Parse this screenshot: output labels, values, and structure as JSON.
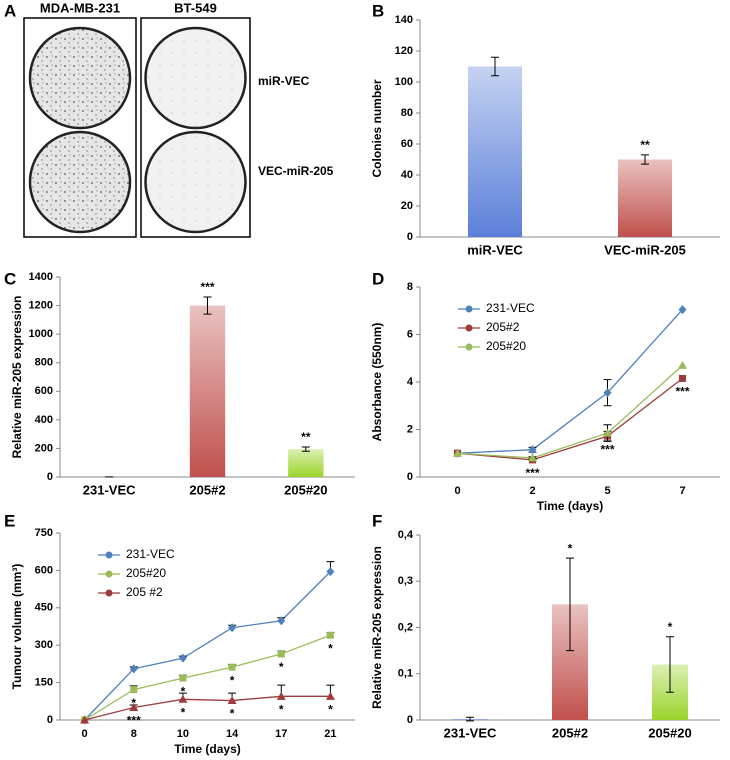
{
  "chart_data": [
    {
      "type": "image",
      "panel": "A",
      "columns": [
        "MDA-MB-231",
        "BT-549"
      ],
      "rows": [
        "miR-VEC",
        "VEC-miR-205"
      ]
    },
    {
      "type": "bar",
      "panel": "B",
      "ylabel": "Colonies number",
      "categories": [
        "miR-VEC",
        "VEC-miR-205"
      ],
      "values": [
        110,
        50
      ],
      "errors": [
        6,
        3
      ],
      "colors": [
        "#5b7fd9",
        "#c0504d"
      ],
      "labels": [
        null,
        "**"
      ],
      "ylim": [
        0,
        140
      ],
      "yticks": [
        0,
        20,
        40,
        60,
        80,
        100,
        120,
        140
      ]
    },
    {
      "type": "bar",
      "panel": "C",
      "ylabel": "Relative miR-205 expression",
      "categories": [
        "231-VEC",
        "205#2",
        "205#20"
      ],
      "values": [
        1,
        1200,
        195
      ],
      "errors": [
        0,
        60,
        15
      ],
      "colors": [
        "#5b7fd9",
        "#c0504d",
        "#9bd42a"
      ],
      "labels": [
        null,
        "***",
        "**"
      ],
      "ylim": [
        0,
        1400
      ],
      "yticks": [
        0,
        200,
        400,
        600,
        800,
        1000,
        1200,
        1400
      ]
    },
    {
      "type": "line",
      "panel": "D",
      "ylabel": "Absorbance (550nm)",
      "xlabel": "Time (days)",
      "categories": [
        "0",
        "2",
        "5",
        "7"
      ],
      "ylim": [
        0,
        8
      ],
      "yticks": [
        0,
        2,
        4,
        6,
        8
      ],
      "series": [
        {
          "name": "231-VEC",
          "color": "#4f81bd",
          "marker": "diamond",
          "values": [
            1,
            1.15,
            3.55,
            7.05
          ],
          "errors": [
            0,
            0.1,
            0.55,
            0
          ]
        },
        {
          "name": "205#2",
          "color": "#9e3b3b",
          "marker": "square",
          "values": [
            1,
            0.72,
            1.72,
            4.15
          ],
          "errors": [
            0,
            0.05,
            0.2,
            0
          ],
          "labels": [
            null,
            "***",
            "***",
            "***"
          ]
        },
        {
          "name": "205#20",
          "color": "#9bbb59",
          "marker": "triangle",
          "values": [
            1,
            0.8,
            1.85,
            4.7
          ],
          "errors": [
            0,
            0.05,
            0.35,
            0
          ]
        }
      ]
    },
    {
      "type": "line",
      "panel": "E",
      "ylabel": "Tumour volume (mm³)",
      "xlabel": "Time (days)",
      "categories": [
        "0",
        "8",
        "10",
        "14",
        "17",
        "21"
      ],
      "ylim": [
        0,
        750
      ],
      "yticks": [
        0,
        150,
        300,
        450,
        600,
        750
      ],
      "series": [
        {
          "name": "231-VEC",
          "color": "#4f81bd",
          "marker": "diamond",
          "values": [
            0,
            205,
            248,
            370,
            398,
            595
          ],
          "errors": [
            0,
            8,
            8,
            10,
            12,
            40
          ]
        },
        {
          "name": "205#20",
          "color": "#9bbb59",
          "marker": "square",
          "values": [
            0,
            122,
            168,
            212,
            265,
            340
          ],
          "errors": [
            0,
            15,
            12,
            10,
            12,
            10
          ],
          "labels": [
            null,
            "*",
            "*",
            "*",
            "*",
            "*"
          ]
        },
        {
          "name": "205 #2",
          "color": "#9e3b3b",
          "marker": "triangle",
          "values": [
            0,
            50,
            83,
            78,
            95,
            95
          ],
          "errors": [
            0,
            10,
            25,
            30,
            45,
            45
          ],
          "labels": [
            null,
            "***",
            "*",
            "*",
            "*",
            "*"
          ]
        }
      ]
    },
    {
      "type": "bar",
      "panel": "F",
      "ylabel": "Relative miR-205 expression",
      "categories": [
        "231-VEC",
        "205#2",
        "205#20"
      ],
      "values": [
        0.002,
        0.25,
        0.12
      ],
      "errors": [
        0.004,
        0.1,
        0.06
      ],
      "colors": [
        "#5b7fd9",
        "#c0504d",
        "#9bd42a"
      ],
      "labels": [
        null,
        "*",
        "*"
      ],
      "ylim": [
        0,
        0.4
      ],
      "yticks": [
        0,
        {
          "value": 0.1,
          "label": "0,1"
        },
        {
          "value": 0.2,
          "label": "0,2"
        },
        {
          "value": 0.3,
          "label": "0,3"
        },
        {
          "value": 0.4,
          "label": "0,4"
        }
      ]
    }
  ]
}
